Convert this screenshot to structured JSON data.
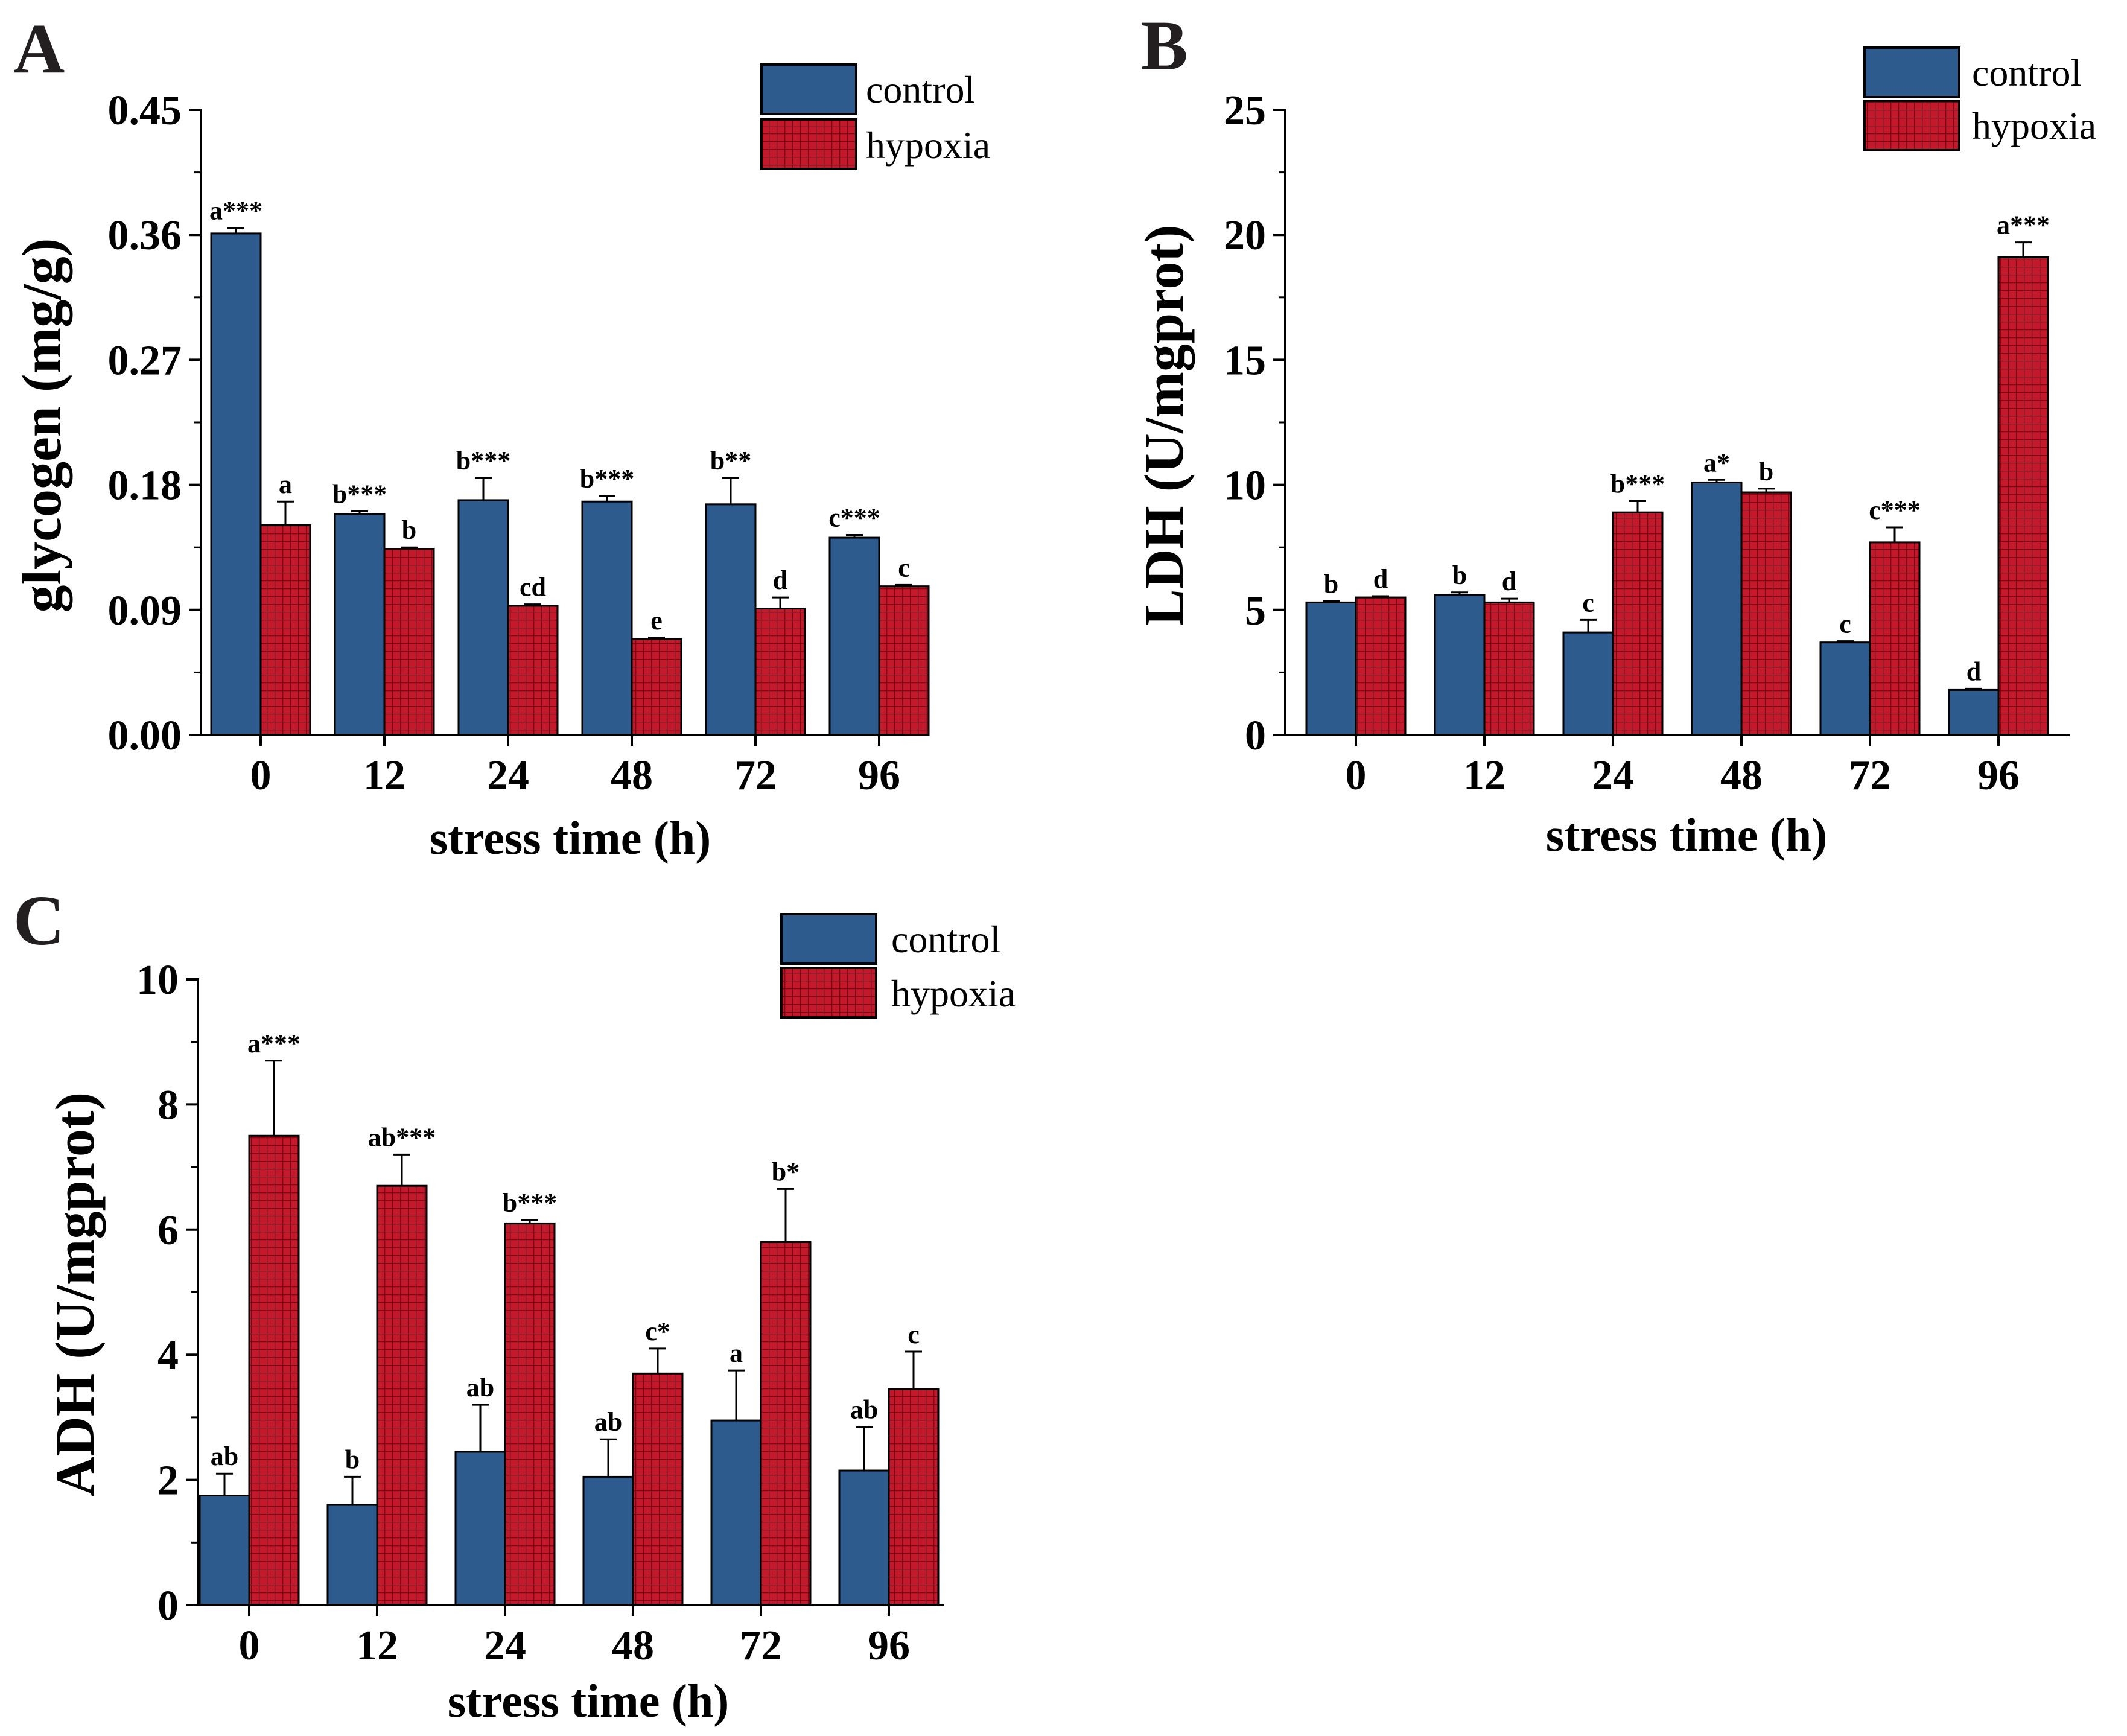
{
  "colors": {
    "control": "#2d5b8e",
    "hypoxia": "#c4182b",
    "axis": "#000000"
  },
  "chart_data": [
    {
      "panel": "A",
      "type": "bar",
      "categories": [
        "0",
        "12",
        "24",
        "48",
        "72",
        "96"
      ],
      "series": [
        {
          "name": "control",
          "values": [
            0.361,
            0.159,
            0.169,
            0.168,
            0.166,
            0.142
          ],
          "errors": [
            0.004,
            0.002,
            0.016,
            0.004,
            0.019,
            0.002
          ],
          "labels": [
            "a***",
            "b***",
            "b***",
            "b***",
            "b**",
            "c***"
          ]
        },
        {
          "name": "hypoxia",
          "values": [
            0.151,
            0.134,
            0.093,
            0.069,
            0.091,
            0.107
          ],
          "errors": [
            0.017,
            0.001,
            0.001,
            0.001,
            0.008,
            0.001
          ],
          "labels": [
            "a",
            "b",
            "cd",
            "e",
            "d",
            "c"
          ]
        }
      ],
      "xlabel": "stress time (h)",
      "ylabel": "glycogen (mg/g)",
      "ylim": [
        0,
        0.45
      ],
      "yticks": [
        "0.00",
        "0.09",
        "0.18",
        "0.27",
        "0.36",
        "0.45"
      ]
    },
    {
      "panel": "B",
      "type": "bar",
      "categories": [
        "0",
        "12",
        "24",
        "48",
        "72",
        "96"
      ],
      "series": [
        {
          "name": "control",
          "values": [
            5.3,
            5.6,
            4.1,
            10.1,
            3.7,
            1.8
          ],
          "errors": [
            0.05,
            0.1,
            0.5,
            0.1,
            0.05,
            0.05
          ],
          "labels": [
            "b",
            "b",
            "c",
            "a*",
            "c",
            "d"
          ]
        },
        {
          "name": "hypoxia",
          "values": [
            5.5,
            5.3,
            8.9,
            9.7,
            7.7,
            19.1
          ],
          "errors": [
            0.05,
            0.15,
            0.45,
            0.15,
            0.6,
            0.6
          ],
          "labels": [
            "d",
            "d",
            "b***",
            "b",
            "c***",
            "a***"
          ]
        }
      ],
      "xlabel": "stress time (h)",
      "ylabel": "LDH (U/mgprot)",
      "ylim": [
        0,
        25
      ],
      "yticks": [
        "0",
        "5",
        "10",
        "15",
        "20",
        "25"
      ]
    },
    {
      "panel": "C",
      "type": "bar",
      "categories": [
        "0",
        "12",
        "24",
        "48",
        "72",
        "96"
      ],
      "series": [
        {
          "name": "control",
          "values": [
            1.75,
            1.6,
            2.45,
            2.05,
            2.95,
            2.15
          ],
          "errors": [
            0.35,
            0.45,
            0.75,
            0.6,
            0.8,
            0.7
          ],
          "labels": [
            "ab",
            "b",
            "ab",
            "ab",
            "a",
            "ab"
          ]
        },
        {
          "name": "hypoxia",
          "values": [
            7.5,
            6.7,
            6.1,
            3.7,
            5.8,
            3.45
          ],
          "errors": [
            1.2,
            0.5,
            0.05,
            0.4,
            0.85,
            0.6
          ],
          "labels": [
            "a***",
            "ab***",
            "b***",
            "c*",
            "b*",
            "c"
          ]
        }
      ],
      "xlabel": "stress time (h)",
      "ylabel": "ADH (U/mgprot)",
      "ylim": [
        0,
        10
      ],
      "yticks": [
        "0",
        "2",
        "4",
        "6",
        "8",
        "10"
      ]
    }
  ]
}
